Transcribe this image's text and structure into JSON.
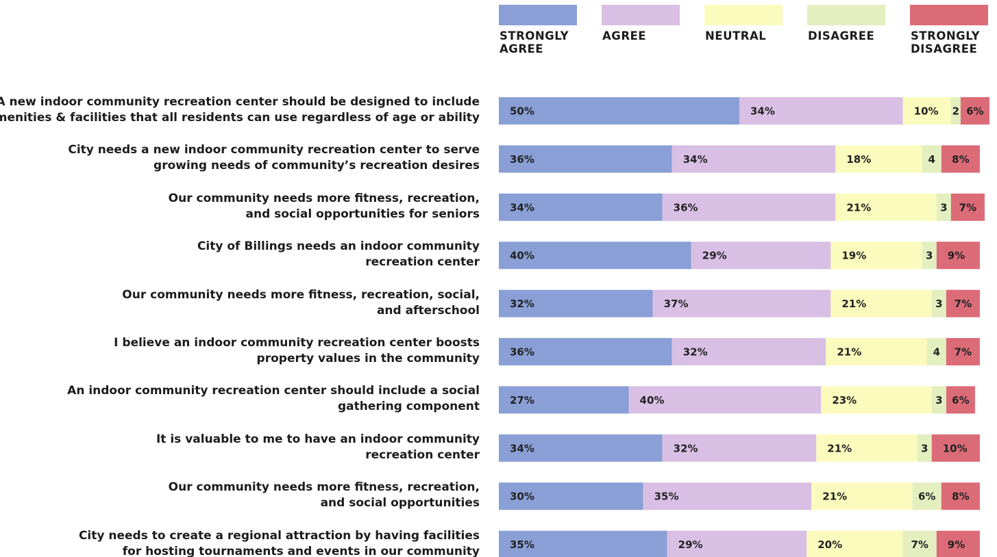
{
  "chart_data": {
    "type": "stacked-bar-horizontal",
    "categories": [
      "A new indoor community recreation center should be designed to include\namenities & facilities that all residents can use regardless of age or ability",
      "City needs a new indoor community recreation center to serve\ngrowing needs of community’s recreation desires",
      "Our community needs more fitness, recreation,\nand social opportunities for seniors",
      "City of Billings needs an indoor community\nrecreation center",
      "Our community needs more fitness, recreation, social,\nand afterschool",
      "I believe an indoor community recreation center boosts\nproperty values in the community",
      "An indoor community recreation center should include a social\ngathering component",
      "It is valuable to me to have an indoor community\nrecreation center",
      "Our community needs more fitness, recreation,\nand social opportunities",
      "City needs to create a regional attraction by having facilities\nfor hosting tournaments and events in our community"
    ],
    "xlim": [
      0,
      102
    ],
    "series": [
      {
        "name": "STRONGLY AGREE",
        "color": "#8a9fd6",
        "values": [
          50,
          36,
          34,
          40,
          32,
          36,
          27,
          34,
          30,
          35
        ],
        "value_labels": [
          "50%",
          "36%",
          "34%",
          "40%",
          "32%",
          "36%",
          "27%",
          "34%",
          "30%",
          "35%"
        ]
      },
      {
        "name": "AGREE",
        "color": "#d9bfe4",
        "values": [
          34,
          34,
          36,
          29,
          37,
          32,
          40,
          32,
          35,
          29
        ],
        "value_labels": [
          "34%",
          "34%",
          "36%",
          "29%",
          "37%",
          "32%",
          "40%",
          "32%",
          "35%",
          "29%"
        ]
      },
      {
        "name": "NEUTRAL",
        "color": "#fbfbbd",
        "values": [
          10,
          18,
          21,
          19,
          21,
          21,
          23,
          21,
          21,
          20
        ],
        "value_labels": [
          "10%",
          "18%",
          "21%",
          "19%",
          "21%",
          "21%",
          "23%",
          "21%",
          "21%",
          "20%"
        ]
      },
      {
        "name": "DISAGREE",
        "color": "#e3efbf",
        "values": [
          2,
          4,
          3,
          3,
          3,
          4,
          3,
          3,
          6,
          7
        ],
        "value_labels": [
          "2",
          "4",
          "3",
          "3",
          "3",
          "4",
          "3",
          "3",
          "6%",
          "7%"
        ]
      },
      {
        "name": "STRONGLY DISAGREE",
        "color": "#dc6b78",
        "values": [
          6,
          8,
          7,
          9,
          7,
          7,
          6,
          10,
          8,
          9
        ],
        "value_labels": [
          "6%",
          "8%",
          "7%",
          "9%",
          "7%",
          "7%",
          "6%",
          "10%",
          "8%",
          "9%"
        ]
      }
    ]
  }
}
